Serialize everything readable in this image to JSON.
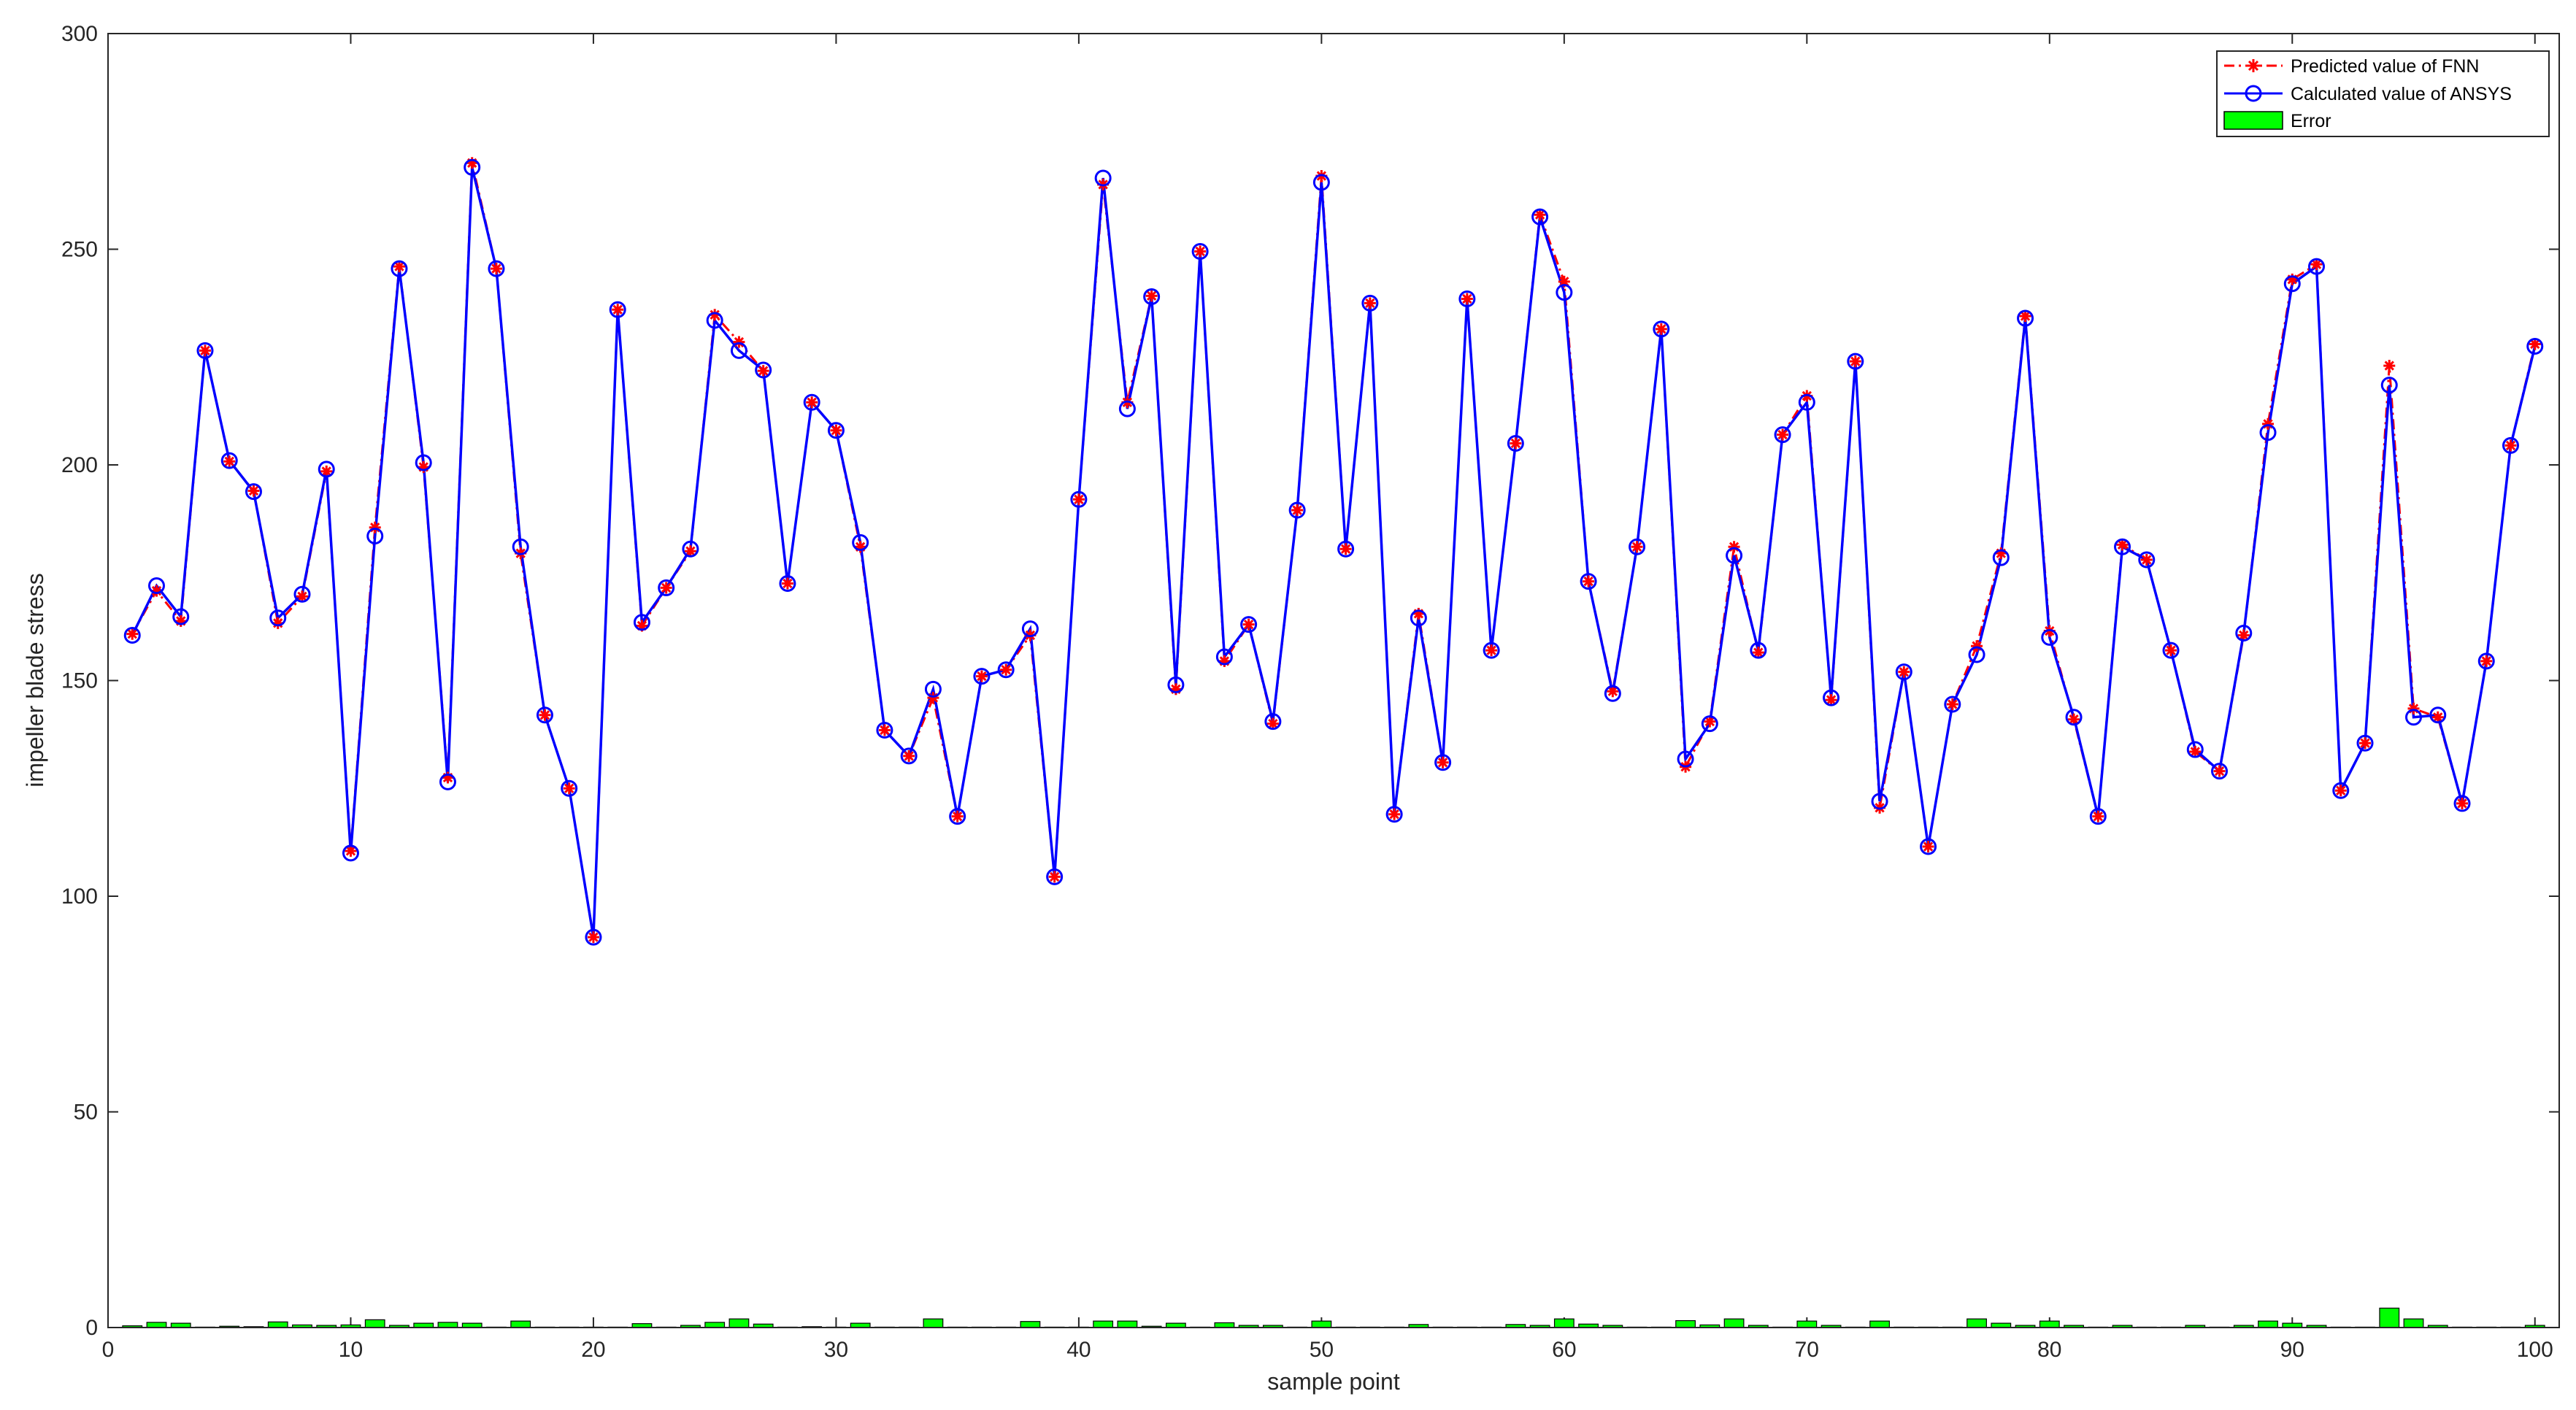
{
  "chart_data": {
    "type": "line",
    "xlabel": "sample point",
    "ylabel": "impeller blade stress",
    "xlim": [
      0,
      101
    ],
    "ylim": [
      0,
      300
    ],
    "xticks": [
      0,
      10,
      20,
      30,
      40,
      50,
      60,
      70,
      80,
      90,
      100
    ],
    "yticks": [
      0,
      50,
      100,
      150,
      200,
      250,
      300
    ],
    "grid": false,
    "legend_placement": "top-right",
    "x": [
      1,
      2,
      3,
      4,
      5,
      6,
      7,
      8,
      9,
      10,
      11,
      12,
      13,
      14,
      15,
      16,
      17,
      18,
      19,
      20,
      21,
      22,
      23,
      24,
      25,
      26,
      27,
      28,
      29,
      30,
      31,
      32,
      33,
      34,
      35,
      36,
      37,
      38,
      39,
      40,
      41,
      42,
      43,
      44,
      45,
      46,
      47,
      48,
      49,
      50,
      51,
      52,
      53,
      54,
      55,
      56,
      57,
      58,
      59,
      60,
      61,
      62,
      63,
      64,
      65,
      66,
      67,
      68,
      69,
      70,
      71,
      72,
      73,
      74,
      75,
      76,
      77,
      78,
      79,
      80,
      81,
      82,
      83,
      84,
      85,
      86,
      87,
      88,
      89,
      90,
      91,
      92,
      93,
      94,
      95,
      96,
      97,
      98,
      99,
      100
    ],
    "series": [
      {
        "name": "Predicted value of FNN",
        "color": "#ff0000",
        "style": "dash-dot-star",
        "values": [
          160.8,
          170.8,
          163.8,
          226.5,
          200.8,
          194.0,
          163.3,
          169.5,
          198.5,
          110.5,
          185.5,
          246.0,
          199.5,
          127.5,
          270.0,
          245.5,
          179.5,
          142.0,
          125.0,
          90.5,
          236.0,
          162.7,
          171.5,
          180.0,
          234.8,
          228.5,
          221.8,
          172.5,
          214.5,
          208.0,
          181.0,
          138.5,
          132.5,
          146.0,
          118.5,
          151.0,
          152.5,
          160.5,
          104.5,
          192.0,
          265.0,
          214.5,
          239.2,
          148.0,
          249.5,
          154.5,
          163.0,
          140.0,
          189.5,
          267.0,
          180.5,
          237.5,
          119.0,
          165.5,
          131.0,
          238.5,
          157.0,
          205.0,
          258.0,
          242.5,
          173.0,
          147.5,
          181.0,
          231.5,
          130.0,
          140.5,
          181.0,
          156.5,
          207.0,
          216.0,
          145.5,
          224.0,
          120.5,
          152.0,
          111.5,
          144.5,
          158.0,
          179.5,
          234.5,
          161.5,
          141.0,
          118.5,
          181.5,
          178.0,
          157.0,
          133.5,
          129.0,
          160.5,
          209.5,
          243.0,
          246.5,
          124.5,
          135.5,
          223.0,
          143.5,
          141.5,
          121.5,
          154.5,
          204.5,
          228.0
        ]
      },
      {
        "name": "Calculated value of ANSYS",
        "color": "#0000ff",
        "style": "solid-circle",
        "values": [
          160.5,
          172.0,
          164.8,
          226.5,
          201.0,
          193.8,
          164.5,
          170.0,
          199.0,
          110.0,
          183.5,
          245.5,
          200.5,
          126.5,
          269.0,
          245.5,
          181.0,
          142.0,
          125.0,
          90.5,
          236.0,
          163.5,
          171.5,
          180.5,
          233.5,
          226.5,
          222.0,
          172.5,
          214.5,
          208.0,
          182.0,
          138.5,
          132.5,
          148.0,
          118.5,
          151.0,
          152.5,
          162.0,
          104.5,
          192.0,
          266.5,
          213.0,
          239.0,
          149.0,
          249.5,
          155.5,
          163.0,
          140.5,
          189.5,
          265.5,
          180.5,
          237.5,
          119.0,
          164.5,
          131.0,
          238.5,
          157.0,
          205.0,
          257.5,
          240.0,
          173.0,
          147.0,
          181.0,
          231.5,
          131.8,
          140.0,
          179.0,
          157.0,
          207.0,
          214.5,
          146.0,
          224.0,
          122.0,
          152.0,
          111.5,
          144.5,
          156.0,
          178.5,
          234.0,
          160.0,
          141.5,
          118.5,
          181.0,
          178.0,
          157.0,
          134.0,
          129.0,
          161.0,
          207.5,
          242.0,
          246.0,
          124.5,
          135.5,
          218.5,
          141.5,
          142.0,
          121.5,
          154.5,
          204.5,
          227.5
        ]
      },
      {
        "name": "Error",
        "color": "#00ff00",
        "style": "bar",
        "values": [
          0.4,
          1.2,
          1.0,
          0.1,
          0.3,
          0.2,
          1.3,
          0.6,
          0.5,
          0.6,
          1.8,
          0.5,
          1.0,
          1.2,
          1.0,
          0.1,
          1.5,
          0.1,
          0.1,
          0.1,
          0.1,
          0.9,
          0.1,
          0.5,
          1.2,
          2.0,
          0.8,
          0.1,
          0.2,
          0.1,
          1.0,
          0.1,
          0.1,
          2.0,
          0.1,
          0.1,
          0.1,
          1.4,
          0.1,
          0.1,
          1.5,
          1.5,
          0.3,
          1.0,
          0.1,
          1.1,
          0.5,
          0.5,
          0.1,
          1.5,
          0.1,
          0.1,
          0.1,
          0.7,
          0.1,
          0.1,
          0.1,
          0.7,
          0.5,
          2.0,
          0.8,
          0.5,
          0.1,
          0.1,
          1.6,
          0.6,
          2.0,
          0.5,
          0.1,
          1.5,
          0.5,
          0.1,
          1.5,
          0.1,
          0.1,
          0.1,
          2.0,
          1.0,
          0.5,
          1.5,
          0.5,
          0.1,
          0.5,
          0.1,
          0.1,
          0.5,
          0.1,
          0.5,
          1.5,
          1.0,
          0.5,
          0.1,
          0.1,
          4.5,
          2.0,
          0.5,
          0.1,
          0.1,
          0.1,
          0.5
        ]
      }
    ]
  }
}
